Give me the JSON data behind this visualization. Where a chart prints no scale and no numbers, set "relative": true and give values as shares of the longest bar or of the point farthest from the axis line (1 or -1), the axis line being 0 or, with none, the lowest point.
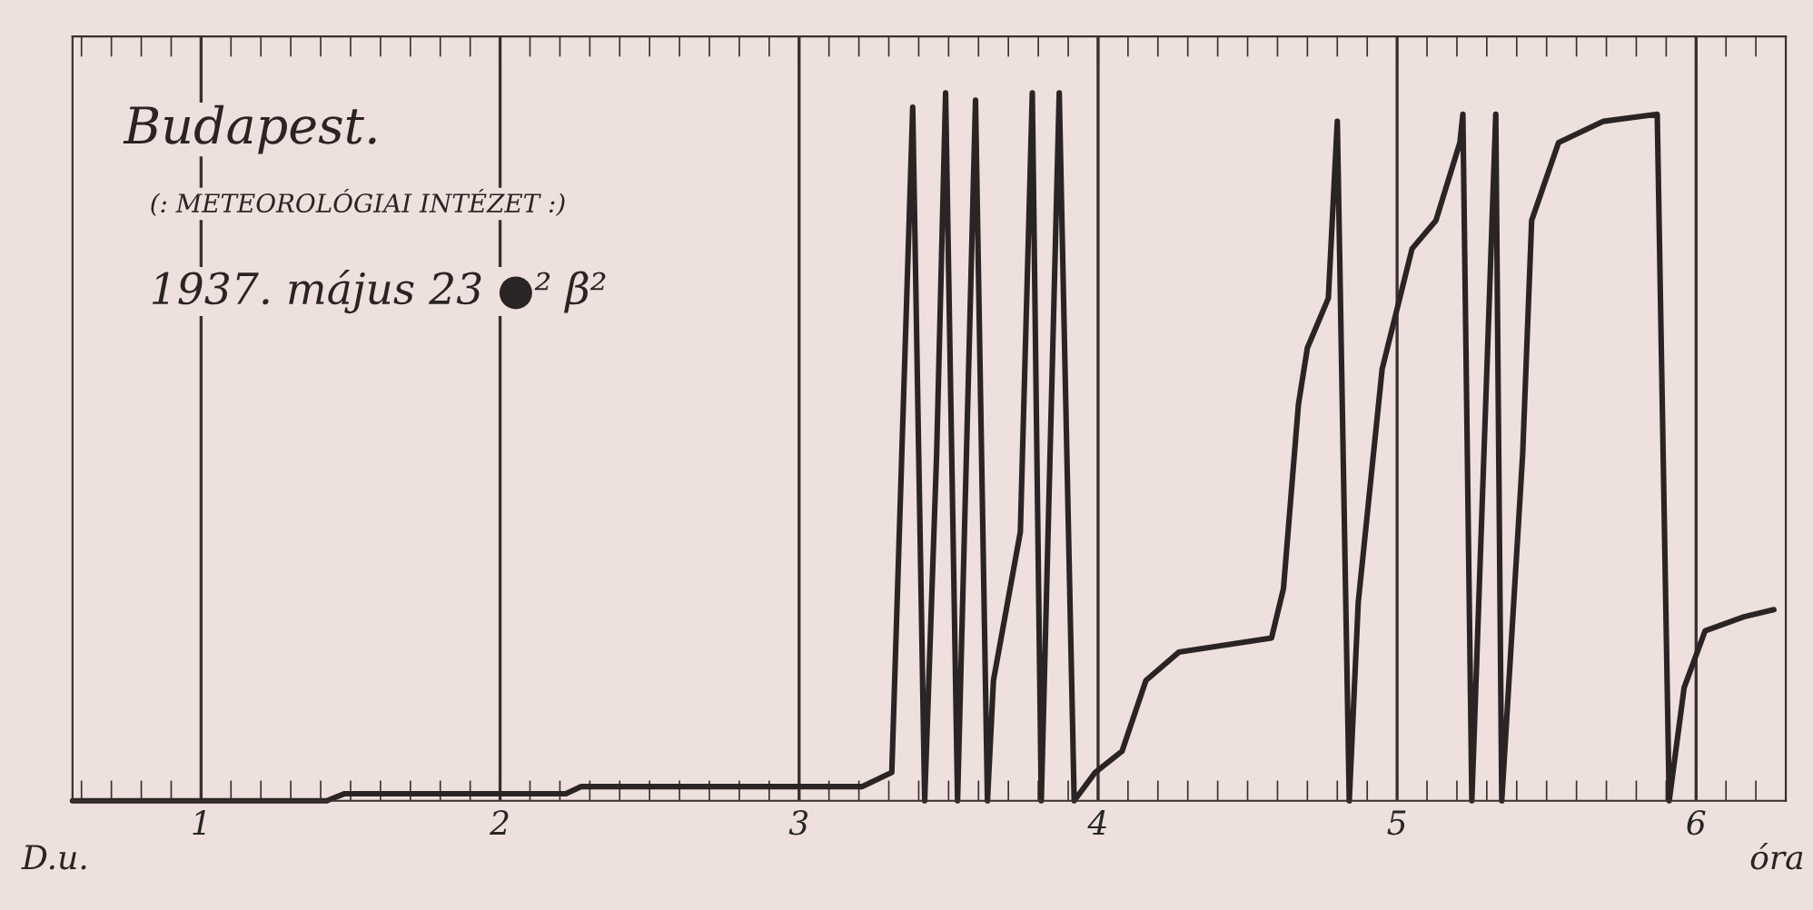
{
  "chart_data": {
    "type": "line",
    "relative": true,
    "title": "Budapest.",
    "subtitle": "(: METEOROLÓGIAI INTÉZET :)",
    "annotations": [
      "1937. május 23 ●² β²",
      "D.u."
    ],
    "xlabel": "óra",
    "xlim": [
      0.57,
      6.3
    ],
    "xticks": [
      1,
      2,
      3,
      4,
      5,
      6
    ],
    "grid": "x",
    "marker": "none",
    "line_style": "solid",
    "series": [
      {
        "color": "#2b2424",
        "x": [
          0.57,
          1.42,
          1.48,
          2.22,
          2.27,
          3.12,
          3.21,
          3.31,
          3.38,
          3.42,
          3.46,
          3.49,
          3.53,
          3.59,
          3.63,
          3.65,
          3.74,
          3.78,
          3.81,
          3.87,
          3.92,
          3.99,
          4.08,
          4.16,
          4.27,
          4.58,
          4.62,
          4.67,
          4.7,
          4.77,
          4.8,
          4.84,
          4.87,
          4.95,
          5.05,
          5.13,
          5.21,
          5.22,
          5.25,
          5.33,
          5.35,
          5.42,
          5.45,
          5.54,
          5.69,
          5.87,
          5.91,
          5.96,
          6.03,
          6.16,
          6.26
        ],
        "values": [
          0.0,
          0.0,
          0.01,
          0.01,
          0.02,
          0.02,
          0.02,
          0.04,
          0.98,
          0.0,
          0.49,
          1.0,
          0.0,
          0.99,
          0.0,
          0.17,
          0.38,
          1.0,
          0.0,
          1.0,
          0.0,
          0.04,
          0.07,
          0.17,
          0.21,
          0.23,
          0.3,
          0.56,
          0.64,
          0.71,
          0.96,
          0.0,
          0.28,
          0.61,
          0.78,
          0.82,
          0.93,
          0.97,
          0.0,
          0.97,
          0.0,
          0.49,
          0.82,
          0.93,
          0.96,
          0.97,
          0.0,
          0.16,
          0.24,
          0.26,
          0.27
        ]
      }
    ]
  }
}
